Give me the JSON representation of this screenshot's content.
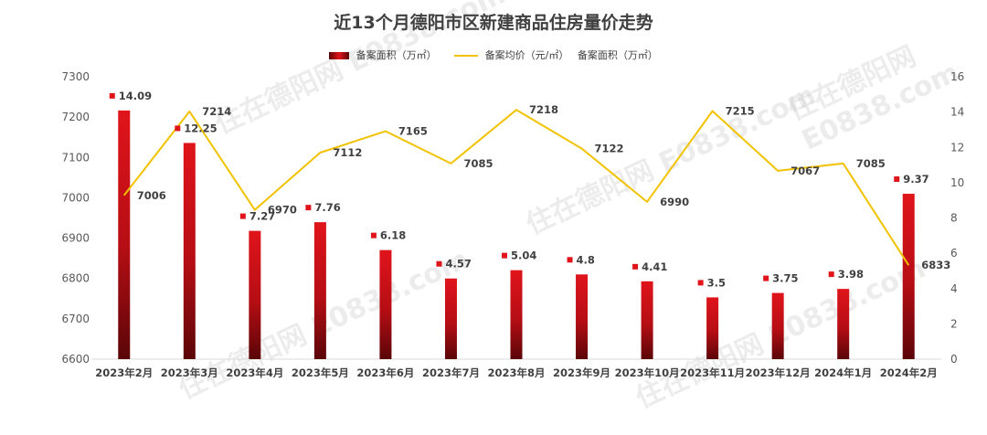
{
  "watermark": "住在德阳网 E0838.com",
  "chart_data": {
    "type": "bar",
    "title": "近13个月德阳市区新建商品住房量价走势",
    "legend_position": "top",
    "grid": false,
    "categories": [
      "2023年2月",
      "2023年3月",
      "2023年4月",
      "2023年5月",
      "2023年6月",
      "2023年7月",
      "2023年8月",
      "2023年9月",
      "2023年10月",
      "2023年11月",
      "2023年12月",
      "2024年1月",
      "2024年2月"
    ],
    "series": [
      {
        "name": "备案面积（万㎡）",
        "type": "bar",
        "axis": "right",
        "color": "#E0141B",
        "values": [
          14.09,
          12.25,
          7.27,
          7.76,
          6.18,
          4.57,
          5.04,
          4.8,
          4.41,
          3.5,
          3.75,
          3.98,
          9.37
        ]
      },
      {
        "name": "备案均价（元/㎡）",
        "type": "line",
        "axis": "left",
        "color": "#F2C200",
        "values": [
          7006,
          7214,
          6970,
          7112,
          7165,
          7085,
          7218,
          7122,
          6990,
          7215,
          7067,
          7085,
          6833
        ]
      }
    ],
    "legend": [
      "备案面积（万㎡）",
      "备案均价（元/㎡）",
      "备案面积（万㎡）"
    ],
    "left_axis": {
      "ylim": [
        6600,
        7300
      ],
      "ticks": [
        6600,
        6700,
        6800,
        6900,
        7000,
        7100,
        7200,
        7300
      ]
    },
    "right_axis": {
      "ylim": [
        0,
        16
      ],
      "ticks": [
        0,
        2,
        4,
        6,
        8,
        10,
        12,
        14,
        16
      ]
    }
  }
}
